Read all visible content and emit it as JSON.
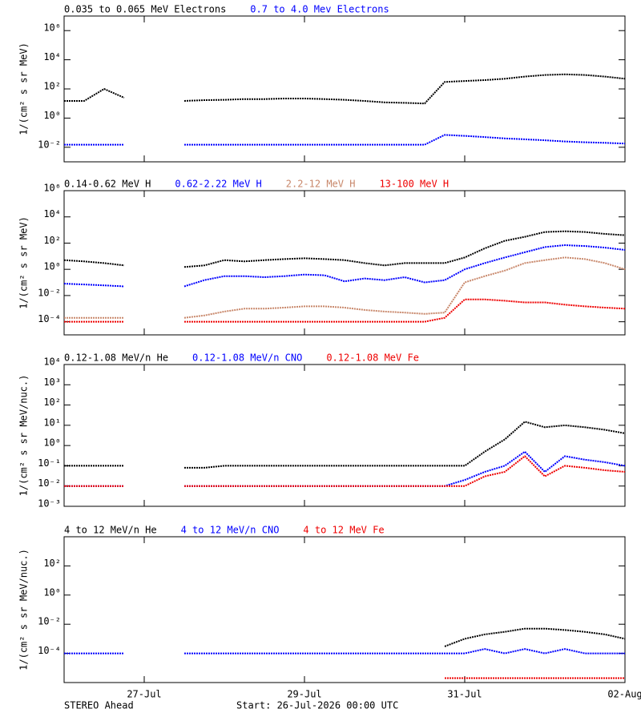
{
  "chart_data": [
    {
      "type": "line",
      "log_scale": true,
      "ylabel": "1/(cm² s sr MeV)",
      "x": [
        0,
        0.25,
        0.5,
        0.75,
        1,
        1.25,
        1.5,
        1.75,
        2,
        2.25,
        2.5,
        2.75,
        3,
        3.25,
        3.5,
        3.75,
        4,
        4.25,
        4.5,
        4.75,
        5,
        5.25,
        5.5,
        5.75,
        6,
        6.25,
        6.5,
        6.75,
        7
      ],
      "xlim": [
        0,
        7
      ],
      "xticks": [
        1,
        3,
        5,
        7
      ],
      "ylim": [
        0.001,
        10000000
      ],
      "yticks": [
        {
          "value": 1000000,
          "label": "10⁶"
        },
        {
          "value": 10000,
          "label": "10⁴"
        },
        {
          "value": 100,
          "label": "10²"
        },
        {
          "value": 1,
          "label": "10⁰"
        },
        {
          "value": 0.01,
          "label": "10⁻²"
        }
      ],
      "series": [
        {
          "name": "0.035 to 0.065 MeV Electrons",
          "color": "#000000",
          "values": [
            15,
            15,
            100,
            25,
            null,
            null,
            15,
            17,
            18,
            20,
            20,
            22,
            22,
            20,
            18,
            15,
            12,
            11,
            10,
            300,
            350,
            400,
            500,
            700,
            900,
            1000,
            900,
            700,
            500
          ]
        },
        {
          "name": "0.7 to 4.0 Mev Electrons",
          "color": "#0000ff",
          "values": [
            0.015,
            0.015,
            0.015,
            0.015,
            null,
            null,
            0.015,
            0.015,
            0.015,
            0.015,
            0.015,
            0.015,
            0.015,
            0.015,
            0.015,
            0.015,
            0.015,
            0.015,
            0.015,
            0.07,
            0.06,
            0.05,
            0.04,
            0.035,
            0.03,
            0.025,
            0.022,
            0.02,
            0.018
          ]
        }
      ]
    },
    {
      "type": "line",
      "log_scale": true,
      "ylabel": "1/(cm² s sr MeV)",
      "x": [
        0,
        0.25,
        0.5,
        0.75,
        1,
        1.25,
        1.5,
        1.75,
        2,
        2.25,
        2.5,
        2.75,
        3,
        3.25,
        3.5,
        3.75,
        4,
        4.25,
        4.5,
        4.75,
        5,
        5.25,
        5.5,
        5.75,
        6,
        6.25,
        6.5,
        6.75,
        7
      ],
      "xlim": [
        0,
        7
      ],
      "xticks": [
        1,
        3,
        5,
        7
      ],
      "ylim": [
        1e-05,
        1000000
      ],
      "yticks": [
        {
          "value": 1000000,
          "label": "10⁶"
        },
        {
          "value": 10000,
          "label": "10⁴"
        },
        {
          "value": 100,
          "label": "10²"
        },
        {
          "value": 1,
          "label": "10⁰"
        },
        {
          "value": 0.01,
          "label": "10⁻²"
        },
        {
          "value": 0.0001,
          "label": "10⁻⁴"
        }
      ],
      "series": [
        {
          "name": "0.14-0.62 MeV H",
          "color": "#000000",
          "values": [
            5,
            4,
            3,
            2,
            null,
            null,
            1.5,
            2,
            5,
            4,
            5,
            6,
            7,
            6,
            5,
            3,
            2,
            3,
            3,
            3,
            8,
            40,
            150,
            300,
            700,
            800,
            700,
            500,
            400
          ]
        },
        {
          "name": "0.62-2.22 MeV H",
          "color": "#0000ff",
          "values": [
            0.08,
            0.07,
            0.06,
            0.05,
            null,
            null,
            0.05,
            0.15,
            0.3,
            0.3,
            0.25,
            0.3,
            0.4,
            0.35,
            0.12,
            0.2,
            0.15,
            0.25,
            0.1,
            0.15,
            1,
            3,
            8,
            20,
            50,
            70,
            60,
            45,
            30
          ]
        },
        {
          "name": "2.2-12 MeV H",
          "color": "#c8876a",
          "values": [
            0.0002,
            0.0002,
            0.0002,
            0.0002,
            null,
            null,
            0.0002,
            0.0003,
            0.0006,
            0.001,
            0.001,
            0.0012,
            0.0015,
            0.0015,
            0.0012,
            0.0008,
            0.0006,
            0.0005,
            0.0004,
            0.0005,
            0.1,
            0.3,
            0.8,
            3,
            5,
            8,
            6,
            3,
            1
          ]
        },
        {
          "name": "13-100 MeV H",
          "color": "#ee0000",
          "values": [
            0.0001,
            0.0001,
            0.0001,
            0.0001,
            null,
            null,
            0.0001,
            0.0001,
            0.0001,
            0.0001,
            0.0001,
            0.0001,
            0.0001,
            0.0001,
            0.0001,
            0.0001,
            0.0001,
            0.0001,
            0.0001,
            0.0002,
            0.005,
            0.005,
            0.004,
            0.003,
            0.003,
            0.002,
            0.0015,
            0.0012,
            0.001
          ]
        }
      ]
    },
    {
      "type": "line",
      "log_scale": true,
      "ylabel": "1/(cm² s sr MeV/nuc.)",
      "x": [
        0,
        0.25,
        0.5,
        0.75,
        1,
        1.25,
        1.5,
        1.75,
        2,
        2.25,
        2.5,
        2.75,
        3,
        3.25,
        3.5,
        3.75,
        4,
        4.25,
        4.5,
        4.75,
        5,
        5.25,
        5.5,
        5.75,
        6,
        6.25,
        6.5,
        6.75,
        7
      ],
      "xlim": [
        0,
        7
      ],
      "xticks": [
        1,
        3,
        5,
        7
      ],
      "ylim": [
        0.001,
        10000
      ],
      "yticks": [
        {
          "value": 10000,
          "label": "10⁴"
        },
        {
          "value": 1000,
          "label": "10³"
        },
        {
          "value": 100,
          "label": "10²"
        },
        {
          "value": 10,
          "label": "10¹"
        },
        {
          "value": 1,
          "label": "10⁰"
        },
        {
          "value": 0.1,
          "label": "10⁻¹"
        },
        {
          "value": 0.01,
          "label": "10⁻²"
        },
        {
          "value": 0.001,
          "label": "10⁻³"
        }
      ],
      "series": [
        {
          "name": "0.12-1.08 MeV/n He",
          "color": "#000000",
          "values": [
            0.1,
            0.1,
            0.1,
            0.1,
            null,
            null,
            0.08,
            0.08,
            0.1,
            0.1,
            0.1,
            0.1,
            0.1,
            0.1,
            0.1,
            0.1,
            0.1,
            0.1,
            0.1,
            0.1,
            0.1,
            0.5,
            2,
            15,
            8,
            10,
            8,
            6,
            4
          ]
        },
        {
          "name": "0.12-1.08 MeV/n CNO",
          "color": "#0000ff",
          "values": [
            0.01,
            0.01,
            0.01,
            0.01,
            null,
            null,
            0.01,
            0.01,
            0.01,
            0.01,
            0.01,
            0.01,
            0.01,
            0.01,
            0.01,
            0.01,
            0.01,
            0.01,
            0.01,
            0.01,
            0.02,
            0.05,
            0.1,
            0.5,
            0.05,
            0.3,
            0.2,
            0.15,
            0.1
          ]
        },
        {
          "name": "0.12-1.08 MeV Fe",
          "color": "#ee0000",
          "values": [
            0.01,
            0.01,
            0.01,
            0.01,
            null,
            null,
            0.01,
            0.01,
            0.01,
            0.01,
            0.01,
            0.01,
            0.01,
            0.01,
            0.01,
            0.01,
            0.01,
            0.01,
            0.01,
            0.01,
            0.01,
            0.03,
            0.05,
            0.3,
            0.03,
            0.1,
            0.08,
            0.06,
            0.05
          ]
        }
      ]
    },
    {
      "type": "line",
      "log_scale": true,
      "ylabel": "1/(cm² s sr MeV/nuc.)",
      "x": [
        0,
        0.25,
        0.5,
        0.75,
        1,
        1.25,
        1.5,
        1.75,
        2,
        2.25,
        2.5,
        2.75,
        3,
        3.25,
        3.5,
        3.75,
        4,
        4.25,
        4.5,
        4.75,
        5,
        5.25,
        5.5,
        5.75,
        6,
        6.25,
        6.5,
        6.75,
        7
      ],
      "xlim": [
        0,
        7
      ],
      "xticks": [
        {
          "value": 1,
          "label": "27-Jul"
        },
        {
          "value": 3,
          "label": "29-Jul"
        },
        {
          "value": 5,
          "label": "31-Jul"
        },
        {
          "value": 7,
          "label": "02-Aug"
        }
      ],
      "ylim": [
        1e-06,
        10000
      ],
      "yticks": [
        {
          "value": 100,
          "label": "10²"
        },
        {
          "value": 1,
          "label": "10⁰"
        },
        {
          "value": 0.01,
          "label": "10⁻²"
        },
        {
          "value": 0.0001,
          "label": "10⁻⁴"
        }
      ],
      "series": [
        {
          "name": "4 to 12 MeV/n He",
          "color": "#000000",
          "values": [
            null,
            null,
            null,
            null,
            null,
            null,
            null,
            null,
            null,
            null,
            null,
            null,
            null,
            null,
            null,
            null,
            null,
            null,
            null,
            0.0003,
            0.001,
            0.002,
            0.003,
            0.005,
            0.005,
            0.004,
            0.003,
            0.002,
            0.001
          ]
        },
        {
          "name": "4 to 12 MeV/n CNO",
          "color": "#0000ff",
          "values": [
            0.0001,
            0.0001,
            0.0001,
            0.0001,
            null,
            null,
            0.0001,
            0.0001,
            0.0001,
            0.0001,
            0.0001,
            0.0001,
            0.0001,
            0.0001,
            0.0001,
            0.0001,
            0.0001,
            0.0001,
            0.0001,
            0.0001,
            0.0001,
            0.0002,
            0.0001,
            0.0002,
            0.0001,
            0.0002,
            0.0001,
            0.0001,
            0.0001
          ]
        },
        {
          "name": "4 to 12 MeV Fe",
          "color": "#ee0000",
          "values": [
            null,
            null,
            null,
            null,
            null,
            null,
            null,
            null,
            null,
            null,
            null,
            null,
            null,
            null,
            null,
            null,
            null,
            null,
            null,
            2e-06,
            2e-06,
            2e-06,
            2e-06,
            2e-06,
            2e-06,
            2e-06,
            2e-06,
            2e-06,
            2e-06
          ]
        }
      ]
    }
  ],
  "footer": {
    "left": "STEREO Ahead",
    "center": "Start: 26-Jul-2026 00:00 UTC"
  }
}
